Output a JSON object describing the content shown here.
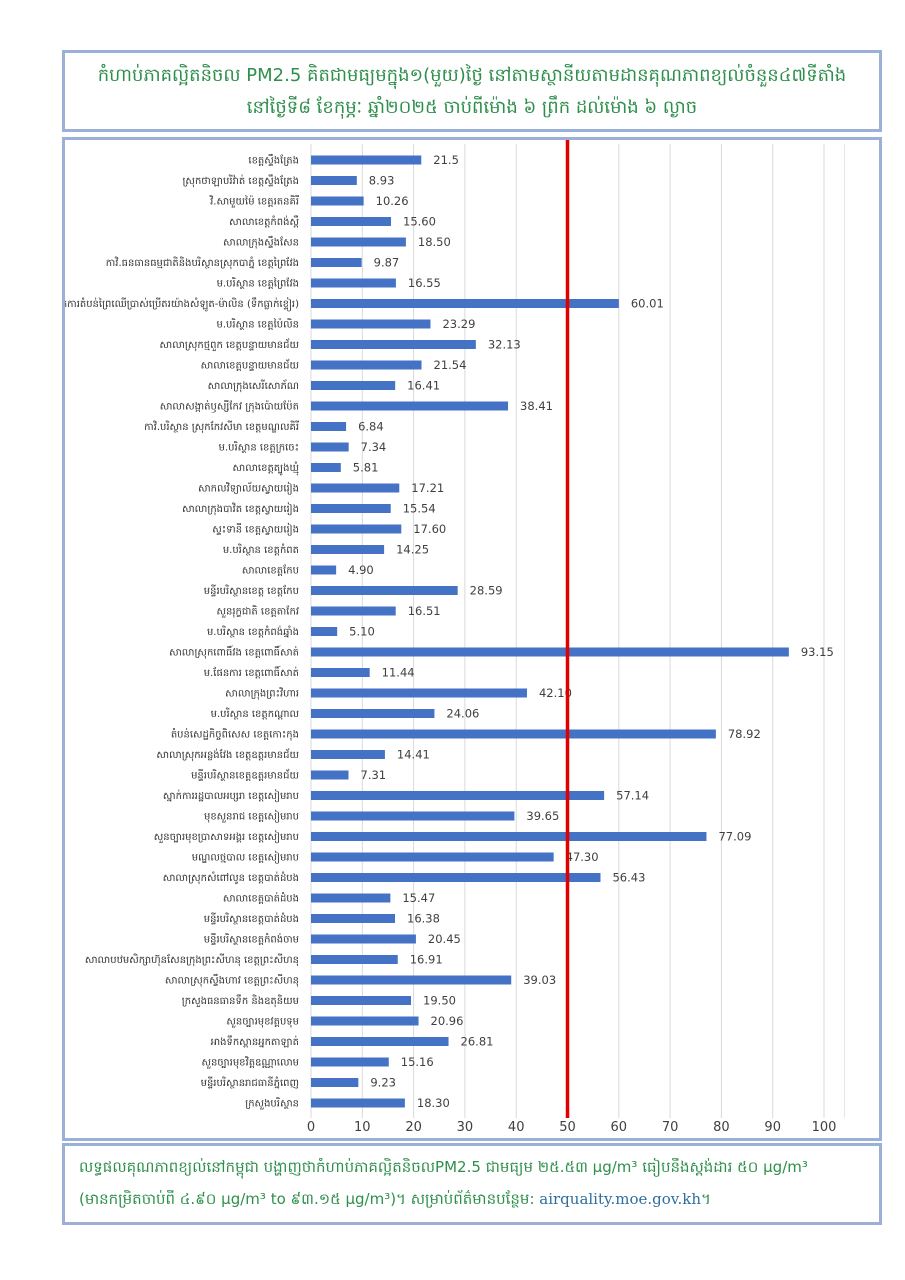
{
  "title": {
    "line1": "កំហាប់ភាគល្អិតនិចល PM2.5 គិតជាមធ្យមក្នុង១(មួយ)ថ្ងៃ នៅតាមស្ថានីយតាមដានគុណភាពខ្យល់ចំនួន៤៧ទីតាំង",
    "line2": "នៅថ្ងៃទី៨ ខែកុម្ភៈ ឆ្នាំ២០២៥ ចាប់ពីម៉ោង ៦ ព្រឹក ដល់ម៉ោង ៦ ល្ងាច"
  },
  "footer": {
    "line1": "លទ្ធផលគុណភាពខ្យល់នៅកម្ពុជា បង្ហាញថាកំហាប់ភាគល្អិតនិចលPM2.5 ជាមធ្យម ២៥.៥៣ μg/m³ ធៀបនឹងស្តង់ដារ ៥០ μg/m³",
    "line2_prefix": "(មានកម្រិតចាប់ពី ៤.៩០ μg/m³ to ៩៣.១៥ μg/m³)។ សម្រាប់ព័ត៌មានបន្ថែម: ",
    "link": "airquality.moe.gov.kh",
    "line2_suffix": "។"
  },
  "chart_data": {
    "type": "bar",
    "orientation": "horizontal",
    "bar_color": "#4472c4",
    "threshold_color": "#e00000",
    "threshold": 50,
    "xlim": [
      0,
      100
    ],
    "xticks": [
      0,
      10,
      20,
      30,
      40,
      50,
      60,
      70,
      80,
      90,
      100
    ],
    "grid": true,
    "categories": [
      "ខេត្តស្ទឹងត្រែង",
      "ស្រុកថាឡាបរិវ៉ាត់ ខេត្តស្ទឹងត្រែង",
      "វិ.សាមួយម៉ៃ ខេត្តរតនគិរី",
      "សាលាខេត្តកំពង់ស្ពឺ",
      "សាលាក្រុងស្ទឹងសែន",
      "កាវិ.ធនធានធម្មជាតិនិងបរិស្ថានស្រុកបាភ្នំ ខេត្តព្រៃវែង",
      "ម.បរិស្ថាន ខេត្តព្រៃវែង",
      "ស្នាក់ការតំបន់ព្រៃឈើប្រាស់ប្រើតរយ៉ាងសំឡូត-ម៉ាលិន (ទឹកធ្លាក់ខ្ទៀរ)",
      "ម.បរិស្ថាន ខេត្តប៉ៃលិន",
      "សាលាស្រុកថ្មពួក ខេត្តបន្ទាយមានជ័យ",
      "សាលាខេត្តបន្ទាយមានជ័យ",
      "សាលាក្រុងសេរីសោភ័ណ",
      "សាលាសង្កាត់ឫស្សីកែវ ក្រុងប៉ោយប៉ែត",
      "កាវិ.បរិស្ថាន ស្រុកកែវសីមា ខេត្តមណ្ឌលគិរី",
      "ម.បរិស្ថាន ខេត្តក្រចេះ",
      "សាលាខេត្តត្បូងឃ្មុំ",
      "សាកលវិទ្យាល័យស្វាយរៀង",
      "សាលាក្រុងបាវិត ខេត្តស្វាយរៀង",
      "ស្ទះទានី ខេត្តស្វាយរៀង",
      "ម.បរិស្ថាន ខេត្តកំពត",
      "សាលាខេត្តកែប",
      "មន្ទីរបរិស្ថានខេត្ត ខេត្តកែប",
      "សួនរុក្ខជាតិ ខេត្តតាកែវ",
      "ម.បរិស្ថាន ខេត្តកំពង់ឆ្នាំង",
      "សាលាស្រុកពោធិ៍វង ខេត្តពោធិ៍សាត់",
      "ម.ផែនការ ខេត្តពោធិ៍សាត់",
      "សាលាក្រុងព្រះវិហារ",
      "ម.បរិស្ថាន ខេត្តកណ្តាល",
      "តំបន់សេដ្ឋកិច្ចពិសេស ខេត្តកោះកុង",
      "សាលាស្រុកអន្លង់វែង ខេត្តឧត្តរមានជ័យ",
      "មន្ទីរបរិស្ថានខេត្តឧត្តរមានជ័យ",
      "ស្នាក់ការរដ្ឋបាលអប្សរា ខេត្តសៀមរាប",
      "មុខសួនរាជ ខេត្តសៀមរាប",
      "សួនច្បារមុខប្រាសាទអង្គរ ខេត្តសៀមរាប",
      "មណ្ឌលថ្មបាល ខេត្តសៀមរាប",
      "សាលាស្រុកសំពៅលូន ខេត្តបាត់ដំបង",
      "សាលាខេត្តបាត់ដំបង",
      "មន្ទីរបរិស្ថានខេត្តបាត់ដំបង",
      "មន្ទីរបរិស្ថានខេត្តកំពង់ចាម",
      "សាលាបឋមសិក្សាហ៊ុនសែនក្រុងព្រះសីហនុ ខេត្តព្រះសីហនុ",
      "សាលាស្រុកស្ទឹងហាវ ខេត្តព្រះសីហនុ",
      "ក្រសួងធនធានទឹក និងឧតុនិយម",
      "សួនច្បារមុខវត្តបទុម",
      "អាងទឹកស្ពានអ្នកតាឡាត់",
      "សួនច្បារមុខវិត្តឧណ្ណាលោម",
      "មន្ទីរបរិស្ថានរាជធានីភ្នំពេញ",
      "ក្រសួងបរិស្ថាន"
    ],
    "values": [
      "21.5",
      "8.93",
      "10.26",
      "15.60",
      "18.50",
      "9.87",
      "16.55",
      "60.01",
      "23.29",
      "32.13",
      "21.54",
      "16.41",
      "38.41",
      "6.84",
      "7.34",
      "5.81",
      "17.21",
      "15.54",
      "17.60",
      "14.25",
      "4.90",
      "28.59",
      "16.51",
      "5.10",
      "93.15",
      "11.44",
      "42.10",
      "24.06",
      "78.92",
      "14.41",
      "7.31",
      "57.14",
      "39.65",
      "77.09",
      "47.30",
      "56.43",
      "15.47",
      "16.38",
      "20.45",
      "16.91",
      "39.03",
      "19.50",
      "20.96",
      "26.81",
      "15.16",
      "9.23",
      "18.30"
    ]
  }
}
